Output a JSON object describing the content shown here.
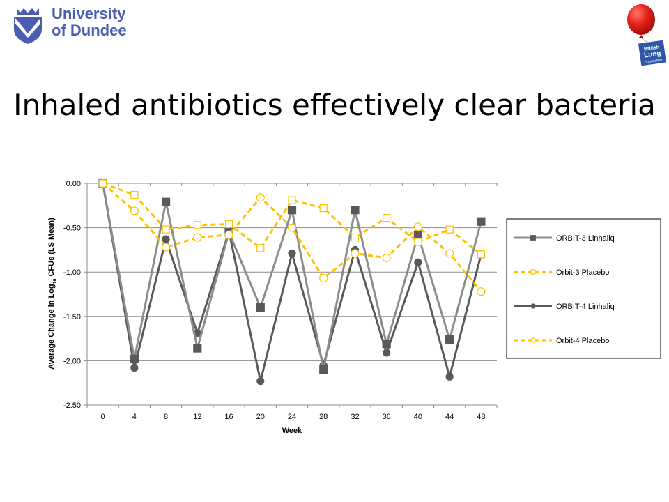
{
  "header": {
    "university_line1": "University",
    "university_line2": "of Dundee",
    "blf_text": [
      "British",
      "Lung",
      "Foundation"
    ]
  },
  "slide_title": "Inhaled antibiotics effectively clear bacteria",
  "colors": {
    "orbit3_linhaliq": "#8c8c8c",
    "orbit4_linhaliq": "#595959",
    "placebo": "#ffc000",
    "brand_blue": "#4a5db0",
    "balloon_red": "#e8231b"
  },
  "chart_data": {
    "type": "line",
    "title": "",
    "xlabel": "Week",
    "ylabel_parts": [
      "Average Change in Log",
      "10",
      " CFUs  (LS Mean)"
    ],
    "categories": [
      "0",
      "4",
      "8",
      "12",
      "16",
      "20",
      "24",
      "28",
      "32",
      "36",
      "40",
      "44",
      "48"
    ],
    "ylim": [
      -2.5,
      0
    ],
    "yticks": [
      "0.00",
      "-0.50",
      "-1.00",
      "-1.50",
      "-2.00",
      "-2.50"
    ],
    "grid": true,
    "legend_position": "right",
    "series": [
      {
        "name": "ORBIT-3 Linhaliq",
        "style": "solid-square-gray",
        "values": [
          0,
          -1.98,
          -0.21,
          -1.86,
          -0.55,
          -1.4,
          -0.3,
          -2.1,
          -0.3,
          -1.81,
          -0.58,
          -1.76,
          -0.43
        ]
      },
      {
        "name": "Orbit-3 Placebo",
        "style": "dashed-open-square",
        "values": [
          0,
          -0.13,
          -0.52,
          -0.47,
          -0.46,
          -0.73,
          -0.19,
          -0.28,
          -0.61,
          -0.39,
          -0.66,
          -0.52,
          -0.8
        ]
      },
      {
        "name": "ORBIT-4 Linhaliq",
        "style": "solid-circle-dark",
        "values": [
          0,
          -2.08,
          -0.63,
          -1.69,
          -0.54,
          -2.23,
          -0.79,
          -2.05,
          -0.75,
          -1.91,
          -0.89,
          -2.18,
          -0.8
        ]
      },
      {
        "name": "Orbit-4 Placebo",
        "style": "dashed-open-circle",
        "values": [
          0,
          -0.31,
          -0.72,
          -0.61,
          -0.58,
          -0.16,
          -0.5,
          -1.07,
          -0.79,
          -0.84,
          -0.49,
          -0.79,
          -1.22
        ]
      }
    ]
  }
}
